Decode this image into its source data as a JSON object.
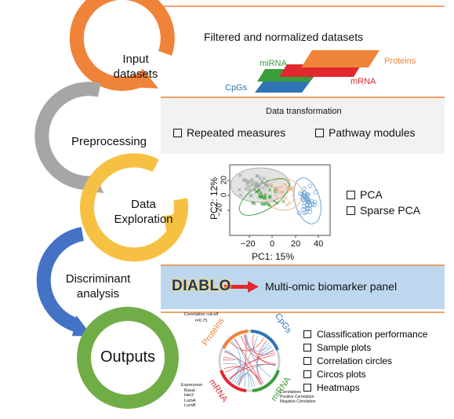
{
  "stages": [
    {
      "label_line1": "Input",
      "label_line2": "datasets",
      "color": "#F0833A"
    },
    {
      "label": "Preprocessing",
      "color": "#A6A6A6"
    },
    {
      "label_line1": "Data",
      "label_line2": "Exploration",
      "color": "#F6C143"
    },
    {
      "label_line1": "Discriminant",
      "label_line2": "analysis",
      "color": "#4472C4"
    },
    {
      "label": "Outputs",
      "color": "#70AD47"
    }
  ],
  "input_panel": {
    "title": "Filtered and normalized datasets",
    "layers": [
      {
        "label": "CpGs",
        "color": "#2E75B6"
      },
      {
        "label": "miRNA",
        "color": "#3A9D3A"
      },
      {
        "label": "mRNA",
        "color": "#E0282E"
      },
      {
        "label": "Proteins",
        "color": "#F0833A"
      }
    ]
  },
  "preprocessing_panel": {
    "title": "Data transformation",
    "options": [
      "Repeated measures",
      "Pathway modules"
    ]
  },
  "exploration_panel": {
    "options": [
      "PCA",
      "Sparse PCA"
    ],
    "plot": {
      "xlabel": "PC1: 15%",
      "ylabel": "PC2: 12%",
      "xticks": [
        "−20",
        "0",
        "20",
        "40"
      ],
      "yticks": [
        "−20",
        "0",
        "20"
      ]
    }
  },
  "discriminant_panel": {
    "method": "DIABLO",
    "result": "Multi-omic biomarker panel"
  },
  "outputs_panel": {
    "items": [
      "Classification performance",
      "Sample plots",
      "Correlation circles",
      "Circos plots",
      "Heatmaps"
    ],
    "circos": {
      "cutoff_line1": "Correlation cut-off",
      "cutoff_line2": "r=0.75",
      "block_labels": [
        "Proteins",
        "CpGs",
        "miRNA",
        "mRNA"
      ],
      "expression_title": "Expression",
      "expression_items": [
        "Basal",
        "Her2",
        "LumA",
        "LumB"
      ],
      "correlations_title": "Correlations",
      "correlation_items": [
        "Positive Correlation",
        "Negative Correlation"
      ]
    }
  },
  "colors": {
    "panel_bg": "#F2F2F2",
    "panel_bg_blue": "#BDD7EE",
    "arrow_red": "#E0282E",
    "diablo_text": "#1F3864",
    "diablo_glow": "#FFD966",
    "line_orange": "#F0833A"
  }
}
